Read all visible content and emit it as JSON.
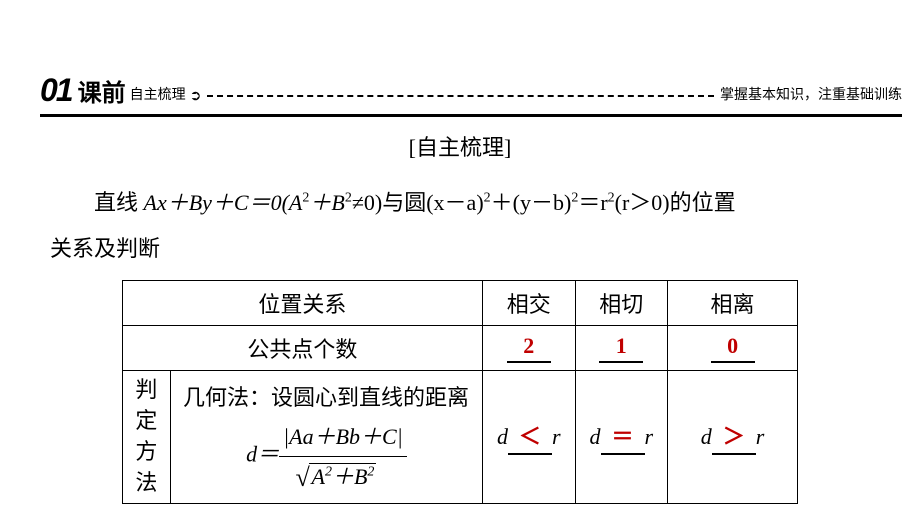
{
  "header": {
    "number": "01",
    "title": "课前",
    "sub": "自主梳理",
    "arrow": "➲",
    "right": "掌握基本知识，注重基础训练"
  },
  "section_title": "[自主梳理]",
  "description": {
    "line_prefix": "直线  ",
    "line_eq": "Ax＋By＋C＝0(A",
    "sup2_1": "2",
    "plus_b": "＋B",
    "sup2_2": "2",
    "neq0": "≠0)与圆(x－a)",
    "sup2_3": "2",
    "plus_yb": "＋(y－b)",
    "sup2_4": "2",
    "eq_r": "＝r",
    "sup2_5": "2",
    "r_cond": "(r＞0)的位置",
    "line2": "关系及判断"
  },
  "table": {
    "row1": {
      "label": "位置关系",
      "c1": "相交",
      "c2": "相切",
      "c3": "相离"
    },
    "row2": {
      "label": "公共点个数",
      "a1": "2",
      "a2": "1",
      "a3": "0"
    },
    "row3": {
      "side_label_1": "判定",
      "side_label_2": "方法",
      "method_line1": "几何法：设圆心到直线的距离",
      "formula_d": "d＝",
      "formula_num": "|Aa＋Bb＋C|",
      "formula_den_a": "A",
      "formula_den_plus": "＋B",
      "r1_d": "d",
      "r1_op": "＜",
      "r1_r": "r",
      "r2_d": "d",
      "r2_op": "＝",
      "r2_r": "r",
      "r3_d": "d",
      "r3_op": "＞",
      "r3_r": "r"
    }
  },
  "style": {
    "answer_color": "#c00000",
    "border_color": "#000000",
    "background_color": "#ffffff",
    "base_fontsize": 22,
    "header_num_fontsize": 32,
    "header_title_fontsize": 24,
    "header_small_fontsize": 14
  }
}
